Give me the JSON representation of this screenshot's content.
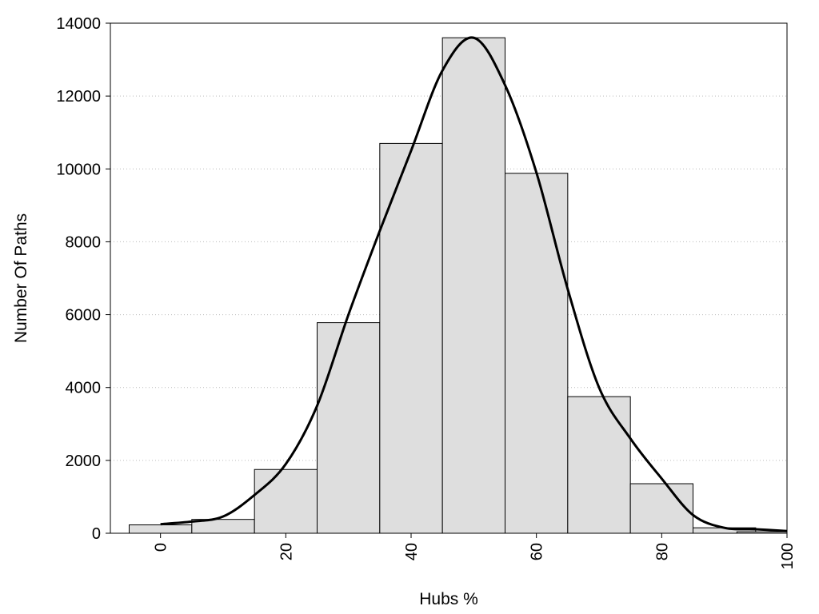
{
  "chart_data": {
    "type": "bar",
    "title": "",
    "xlabel": "Hubs %",
    "ylabel": "Number Of Paths",
    "xlim": [
      -8,
      100
    ],
    "ylim": [
      0,
      14000
    ],
    "x_ticks": [
      0,
      20,
      40,
      60,
      80,
      100
    ],
    "y_ticks": [
      0,
      2000,
      4000,
      6000,
      8000,
      10000,
      12000,
      14000
    ],
    "grid": "horizontal dotted",
    "bin_width": 10,
    "bars": [
      {
        "x": 0,
        "value": 230
      },
      {
        "x": 10,
        "value": 380
      },
      {
        "x": 20,
        "value": 1750
      },
      {
        "x": 30,
        "value": 5780
      },
      {
        "x": 40,
        "value": 10700
      },
      {
        "x": 50,
        "value": 13600
      },
      {
        "x": 60,
        "value": 9880
      },
      {
        "x": 70,
        "value": 3750
      },
      {
        "x": 80,
        "value": 1360
      },
      {
        "x": 90,
        "value": 150
      },
      {
        "x": 97,
        "value": 40
      }
    ],
    "density_curve": {
      "x": [
        0,
        5,
        10,
        15,
        20,
        25,
        30,
        35,
        40,
        45,
        50,
        55,
        60,
        65,
        70,
        75,
        80,
        85,
        90,
        95,
        100
      ],
      "y": [
        250,
        320,
        460,
        1050,
        1900,
        3500,
        6000,
        8300,
        10500,
        12700,
        13600,
        12300,
        9900,
        6700,
        4000,
        2600,
        1500,
        500,
        150,
        110,
        60
      ]
    },
    "colors": {
      "bar_fill": "#dedede",
      "bar_stroke": "#000000",
      "curve": "#000000",
      "grid": "#bbbbbb"
    }
  }
}
